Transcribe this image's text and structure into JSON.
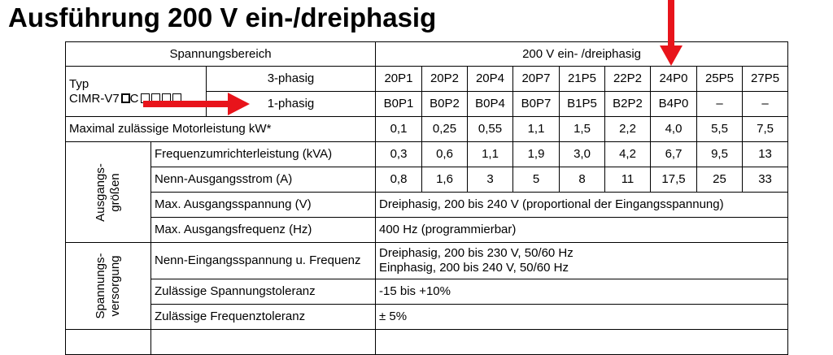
{
  "title": "Ausführung 200 V ein-/dreiphasig",
  "header": {
    "range_label": "Spannungsbereich",
    "range_value": "200 V  ein- /dreiphasig"
  },
  "type_block": {
    "typ": "Typ",
    "model": "CIMR-V7",
    "model_c": "C",
    "row_3": "3-phasig",
    "row_1": "1-phasig",
    "models_3": [
      "20P1",
      "20P2",
      "20P4",
      "20P7",
      "21P5",
      "22P2",
      "24P0",
      "25P5",
      "27P5"
    ],
    "models_1": [
      "B0P1",
      "B0P2",
      "B0P4",
      "B0P7",
      "B1P5",
      "B2P2",
      "B4P0",
      "–",
      "–"
    ]
  },
  "motor": {
    "label": "Maximal zulässige Motorleistung kW*",
    "values": [
      "0,1",
      "0,25",
      "0,55",
      "1,1",
      "1,5",
      "2,2",
      "4,0",
      "5,5",
      "7,5"
    ]
  },
  "output_group": {
    "label_line1": "Ausgangs-",
    "label_line2": "größen",
    "rows": [
      {
        "label": "Frequenzumrichterleistung (kVA)",
        "values": [
          "0,3",
          "0,6",
          "1,1",
          "1,9",
          "3,0",
          "4,2",
          "6,7",
          "9,5",
          "13"
        ]
      },
      {
        "label": "Nenn-Ausgangsstrom (A)",
        "values": [
          "0,8",
          "1,6",
          "3",
          "5",
          "8",
          "11",
          "17,5",
          "25",
          "33"
        ]
      },
      {
        "label": "Max. Ausgangsspannung (V)",
        "text": "Dreiphasig, 200 bis 240 V (proportional der Eingangsspannung)"
      },
      {
        "label": "Max. Ausgangsfrequenz (Hz)",
        "text": "400 Hz (programmierbar)"
      }
    ]
  },
  "supply_group": {
    "label_line1": "Spannungs-",
    "label_line2": "versorgung",
    "rows": [
      {
        "label": "Nenn-Eingangsspannung u. Frequenz",
        "text_line1": "Dreiphasig, 200 bis 230 V, 50/60 Hz",
        "text_line2": "Einphasig, 200 bis 240 V, 50/60 Hz"
      },
      {
        "label": "Zulässige Spannungstoleranz",
        "text": "-15 bis +10%"
      },
      {
        "label": "Zulässige Frequenztoleranz",
        "text": "± 5%"
      }
    ]
  },
  "colors": {
    "arrow": "#e8141b",
    "border": "#000000",
    "text": "#000000"
  }
}
